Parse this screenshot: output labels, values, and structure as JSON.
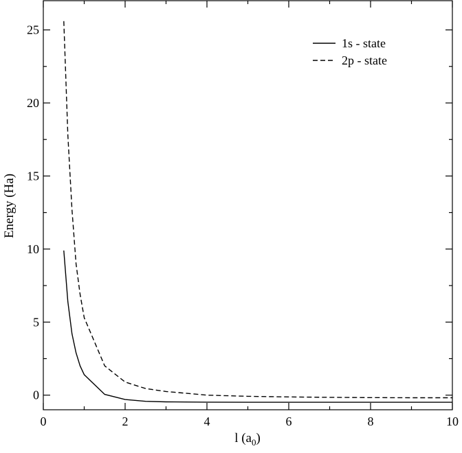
{
  "chart_data": {
    "type": "line",
    "title": "",
    "xlabel": "l (a",
    "xlabel_sub": "0",
    "xlabel_close": ")",
    "ylabel": "Energy (Ha)",
    "xlim": [
      0,
      10
    ],
    "ylim": [
      -1,
      27
    ],
    "xticks": [
      0,
      2,
      4,
      6,
      8,
      10
    ],
    "yticks": [
      0,
      5,
      10,
      15,
      20,
      25
    ],
    "x_tick_labels": [
      "0",
      "2",
      "4",
      "6",
      "8",
      "10"
    ],
    "y_tick_labels": [
      "0",
      "5",
      "10",
      "15",
      "20",
      "25"
    ],
    "grid": false,
    "legend_position": "top-right",
    "series": [
      {
        "name": "1s - state",
        "dash": "solid",
        "x": [
          0.5,
          0.6,
          0.7,
          0.8,
          0.9,
          1.0,
          1.5,
          2.0,
          2.5,
          3.0,
          4.0,
          5.0,
          6.0,
          7.0,
          8.0,
          9.0,
          10.0
        ],
        "y": [
          9.9,
          6.4,
          4.2,
          2.9,
          2.0,
          1.4,
          0.05,
          -0.3,
          -0.42,
          -0.46,
          -0.48,
          -0.49,
          -0.49,
          -0.49,
          -0.49,
          -0.49,
          -0.49
        ]
      },
      {
        "name": "2p - state",
        "dash": "dashed",
        "x": [
          0.5,
          0.6,
          0.7,
          0.8,
          0.9,
          1.0,
          1.5,
          2.0,
          2.5,
          3.0,
          4.0,
          5.0,
          6.0,
          7.0,
          8.0,
          9.0,
          10.0
        ],
        "y": [
          25.6,
          17.8,
          12.7,
          9.0,
          6.9,
          5.3,
          2.0,
          0.9,
          0.45,
          0.25,
          0.0,
          -0.08,
          -0.12,
          -0.15,
          -0.17,
          -0.18,
          -0.18
        ]
      }
    ]
  }
}
